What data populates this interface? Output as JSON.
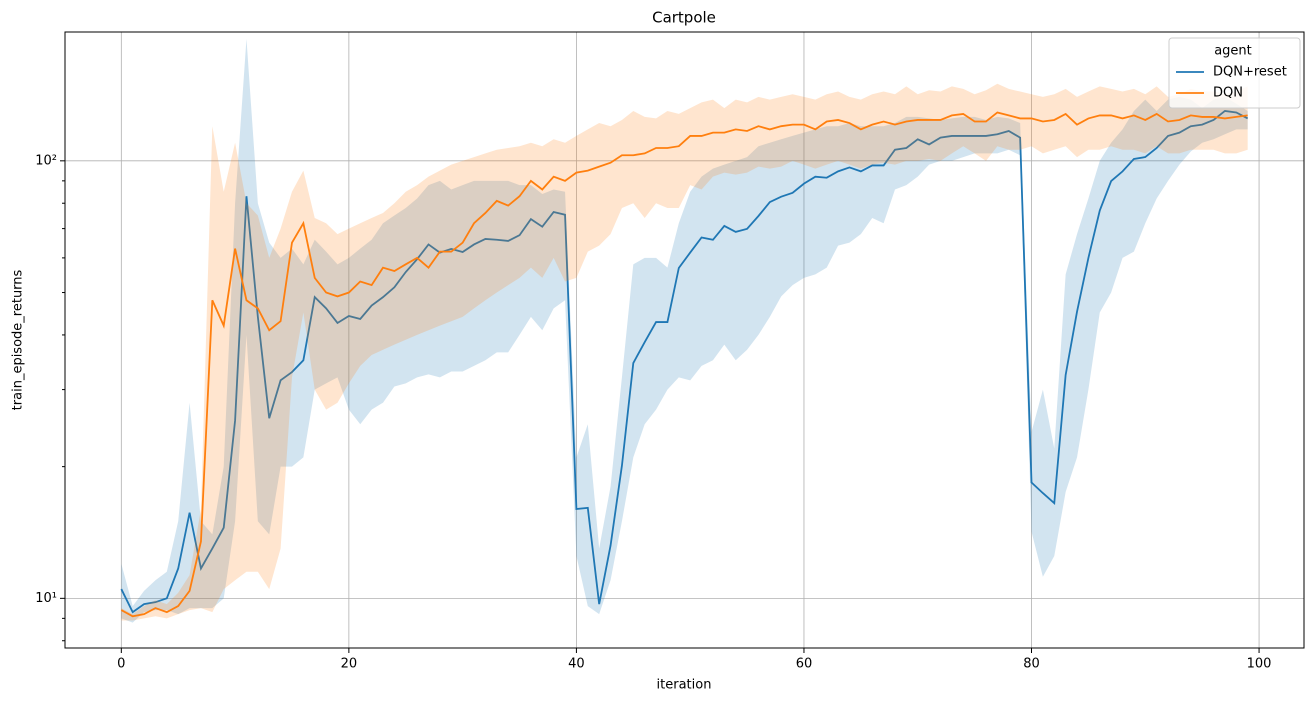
{
  "chart_data": {
    "type": "line",
    "title": "Cartpole",
    "x_label": "iteration",
    "y_label": "train_episode_returns",
    "x": [
      0,
      1,
      2,
      3,
      4,
      5,
      6,
      7,
      8,
      9,
      10,
      11,
      12,
      13,
      14,
      15,
      16,
      17,
      18,
      19,
      20,
      21,
      22,
      23,
      24,
      25,
      26,
      27,
      28,
      29,
      30,
      31,
      32,
      33,
      34,
      35,
      36,
      37,
      38,
      39,
      40,
      41,
      42,
      43,
      44,
      45,
      46,
      47,
      48,
      49,
      50,
      51,
      52,
      53,
      54,
      55,
      56,
      57,
      58,
      59,
      60,
      61,
      62,
      63,
      64,
      65,
      66,
      67,
      68,
      69,
      70,
      71,
      72,
      73,
      74,
      75,
      76,
      77,
      78,
      79,
      80,
      81,
      82,
      83,
      84,
      85,
      86,
      87,
      88,
      89,
      90,
      91,
      92,
      93,
      94,
      95,
      96,
      97,
      98,
      99
    ],
    "xlim": [
      -4.95,
      103.95
    ],
    "xticks": [
      0,
      20,
      40,
      60,
      80,
      100
    ],
    "y_scale": "log",
    "ylim": [
      7.7,
      197
    ],
    "yticks": [
      {
        "value": 10,
        "label": "10¹"
      },
      {
        "value": 100,
        "label": "10²"
      }
    ],
    "yminorticks": [
      8,
      9,
      20,
      30,
      40,
      50,
      60,
      70,
      80,
      90
    ],
    "grid": true,
    "legend": "upper right",
    "legend_title": "agent",
    "series": [
      {
        "name": "DQN+reset",
        "color": "#1f77b4",
        "values": [
          10.5,
          9.3,
          9.7,
          9.8,
          10.0,
          11.7,
          15.7,
          11.7,
          13.0,
          14.5,
          25.5,
          83,
          44,
          25.8,
          31.5,
          32.9,
          35,
          48.8,
          46.0,
          42.6,
          44.2,
          43.5,
          46.7,
          48.8,
          51.4,
          55.7,
          59.6,
          64.4,
          61.7,
          62.9,
          61.9,
          64.4,
          66.3,
          66.0,
          65.6,
          67.6,
          73.6,
          70.7,
          76.4,
          75.3,
          16.0,
          16.1,
          9.7,
          13.2,
          20.1,
          34.5,
          38.5,
          42.8,
          42.8,
          56.9,
          61.7,
          66.8,
          66.0,
          71.0,
          68.8,
          69.9,
          74.8,
          80.5,
          82.8,
          84.5,
          88.7,
          92.0,
          91.5,
          94.6,
          96.6,
          94.6,
          97.6,
          97.6,
          106,
          107,
          112,
          109,
          113,
          114,
          114,
          114,
          114,
          115,
          117,
          113,
          18.4,
          17.4,
          16.5,
          32.4,
          45.2,
          60,
          77,
          89.9,
          94.6,
          101,
          102,
          107,
          114,
          116,
          120,
          121,
          124,
          130,
          129,
          125
        ],
        "lower": [
          9.0,
          8.8,
          9.3,
          9.4,
          9.4,
          9.2,
          9.5,
          9.5,
          9.5,
          10,
          15,
          40,
          15,
          14,
          20,
          20,
          21,
          30,
          31,
          32,
          27,
          25,
          27,
          28,
          30.5,
          31,
          32,
          32.5,
          32,
          33,
          33,
          34,
          35,
          36.5,
          36.5,
          40,
          44,
          41,
          46,
          48,
          12.5,
          9.6,
          9.2,
          11,
          15,
          21,
          25,
          27,
          30,
          32,
          31.5,
          34,
          35,
          38,
          35,
          37,
          40,
          44,
          49,
          52,
          54,
          55,
          57,
          64,
          65,
          68,
          74,
          72,
          86,
          88,
          92,
          98,
          100,
          100,
          102,
          104,
          104,
          104,
          106,
          103,
          14.2,
          11.2,
          12.5,
          17.5,
          21,
          30,
          45,
          50,
          60,
          62,
          72,
          82,
          90,
          98,
          105,
          110,
          112,
          115,
          118,
          118
        ],
        "upper": [
          12,
          9.6,
          10.4,
          11,
          11.5,
          15,
          28,
          15,
          14,
          20,
          80,
          190,
          80,
          65,
          60,
          63,
          58,
          66,
          62,
          58,
          60,
          63,
          66,
          72,
          75,
          78,
          82,
          88,
          90,
          86,
          88,
          90,
          90,
          90,
          90,
          88,
          88,
          84,
          86,
          85,
          21,
          25,
          13,
          18,
          32,
          58,
          60,
          60,
          57,
          72,
          85,
          92,
          96,
          98,
          100,
          102,
          108,
          110,
          112,
          114,
          116,
          118,
          120,
          120,
          122,
          120,
          120,
          120,
          122,
          126,
          126,
          125,
          124,
          125,
          126,
          126,
          124,
          126,
          125,
          122,
          24,
          30,
          22,
          55,
          68,
          82,
          100,
          110,
          118,
          130,
          138,
          130,
          138,
          140,
          138,
          132,
          138,
          140,
          135,
          130
        ]
      },
      {
        "name": "DQN",
        "color": "#ff7f0e",
        "values": [
          9.4,
          9.1,
          9.2,
          9.5,
          9.3,
          9.6,
          10.4,
          13.5,
          48,
          42,
          63,
          48,
          46,
          41,
          43,
          65,
          72,
          54,
          50,
          49,
          50,
          53,
          52,
          57,
          56,
          58,
          60,
          57,
          62,
          62,
          65,
          72,
          76,
          81,
          79,
          83,
          90,
          86,
          92,
          90,
          94,
          95,
          97,
          99,
          103,
          103,
          104,
          107,
          107,
          108,
          114,
          114,
          116,
          116,
          118,
          117,
          120,
          118,
          120,
          121,
          121,
          118,
          123,
          124,
          122,
          118,
          121,
          123,
          121,
          123,
          124,
          124,
          124,
          127,
          128,
          123,
          123,
          129,
          127,
          125,
          125,
          123,
          124,
          128,
          121,
          125,
          127,
          127,
          125,
          127,
          124,
          128,
          123,
          124,
          127,
          126,
          126,
          125,
          126,
          127
        ],
        "lower": [
          8.9,
          8.9,
          9.0,
          9.1,
          9.0,
          9.2,
          9.4,
          9.5,
          9.3,
          10.5,
          11,
          11.5,
          11.5,
          10.5,
          13,
          32,
          45,
          30,
          27,
          28,
          31,
          34,
          36,
          37,
          38,
          39,
          40,
          41,
          42,
          43,
          44,
          46,
          48,
          50,
          52,
          54,
          57,
          54,
          60,
          53,
          54,
          62,
          64,
          68,
          78,
          80,
          74,
          80,
          78,
          78,
          88,
          86,
          92,
          94,
          93,
          94,
          97,
          96,
          97,
          100,
          98,
          96,
          98,
          100,
          98,
          96,
          98,
          99,
          98,
          100,
          100,
          101,
          100,
          104,
          108,
          104,
          100,
          108,
          106,
          106,
          108,
          104,
          106,
          108,
          102,
          106,
          106,
          108,
          106,
          106,
          104,
          108,
          104,
          104,
          106,
          106,
          106,
          104,
          104,
          106
        ],
        "upper": [
          9.5,
          9.2,
          9.6,
          9.9,
          9.7,
          10.3,
          11.3,
          16,
          120,
          85,
          110,
          80,
          75,
          60,
          70,
          85,
          95,
          74,
          72,
          68,
          70,
          72,
          74,
          76,
          80,
          85,
          88,
          92,
          95,
          98,
          100,
          102,
          104,
          106,
          107,
          108,
          110,
          108,
          112,
          110,
          114,
          118,
          122,
          120,
          124,
          130,
          126,
          125,
          130,
          128,
          132,
          136,
          138,
          132,
          138,
          136,
          140,
          138,
          140,
          142,
          140,
          138,
          142,
          144,
          140,
          138,
          142,
          144,
          142,
          148,
          142,
          145,
          144,
          148,
          146,
          142,
          145,
          150,
          146,
          144,
          142,
          140,
          142,
          146,
          140,
          144,
          148,
          146,
          144,
          146,
          142,
          148,
          140,
          142,
          146,
          144,
          144,
          142,
          144,
          148
        ]
      }
    ]
  }
}
